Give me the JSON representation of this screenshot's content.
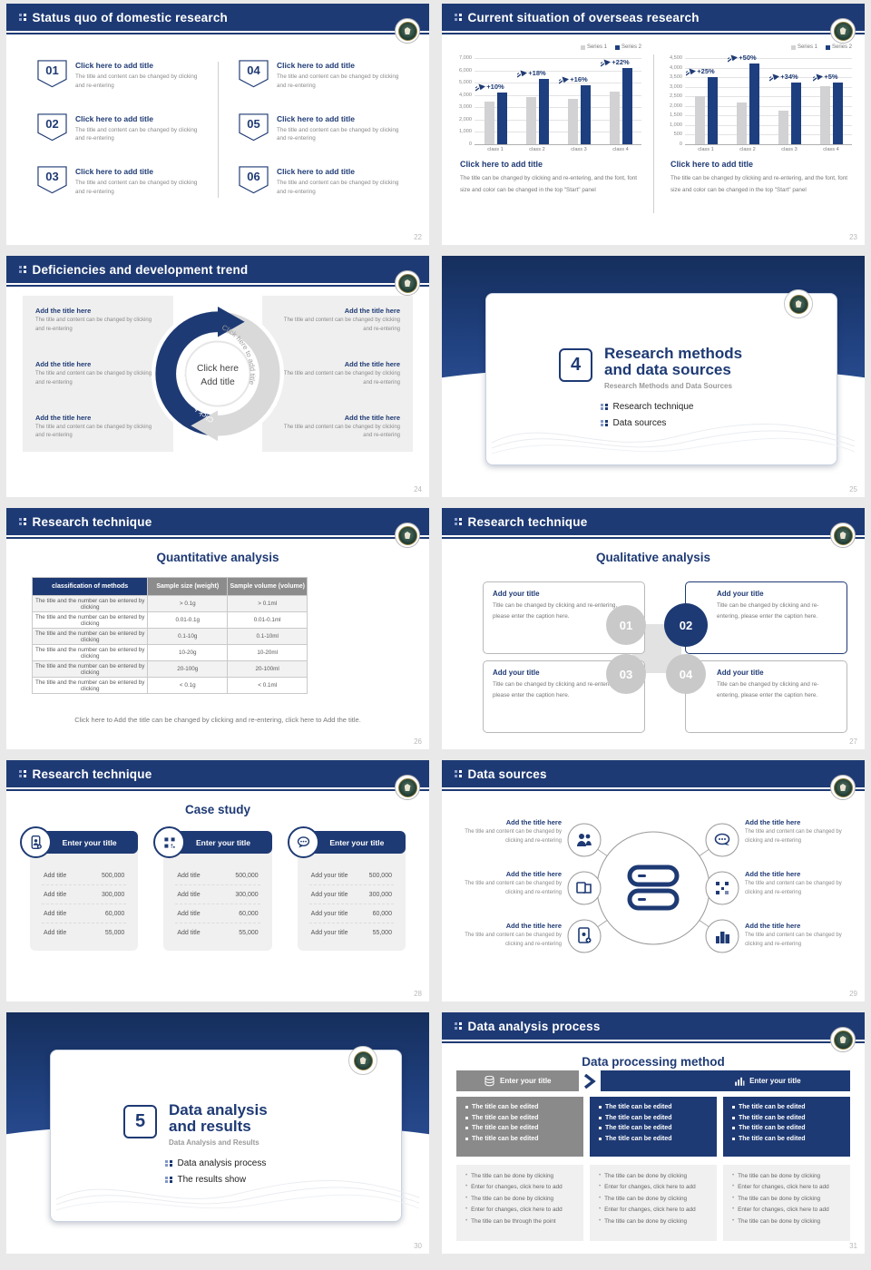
{
  "colors": {
    "navy": "#1e3a74",
    "bar_blue": "#1e3f7f",
    "bar_gray": "#d2d2d4",
    "gray_bar": "#8a8a8a",
    "light_panel": "#f0f0f0"
  },
  "chart_data": [
    {
      "type": "bar",
      "title": "",
      "xlabel": "",
      "ylabel": "",
      "categories": [
        "class 1",
        "class 2",
        "class 3",
        "class 4"
      ],
      "series": [
        {
          "name": "Series 1",
          "color": "#d2d2d4",
          "values": [
            3500,
            3800,
            3700,
            4300
          ]
        },
        {
          "name": "Series 2",
          "color": "#1e3f7f",
          "values": [
            4200,
            5300,
            4800,
            6200
          ]
        }
      ],
      "annotations": [
        "+10%",
        "+18%",
        "+16%",
        "+22%"
      ],
      "ylim": [
        0,
        7000
      ],
      "ytick_step": 1000,
      "grid": true,
      "legend_position": "top-right"
    },
    {
      "type": "bar",
      "title": "",
      "xlabel": "",
      "ylabel": "",
      "categories": [
        "class 1",
        "class 2",
        "class 3",
        "class 4"
      ],
      "series": [
        {
          "name": "Series 1",
          "color": "#d2d2d4",
          "values": [
            2500,
            2200,
            1750,
            3050
          ]
        },
        {
          "name": "Series 2",
          "color": "#1e3f7f",
          "values": [
            3500,
            4200,
            3200,
            3200
          ]
        }
      ],
      "annotations": [
        "+25%",
        "+50%",
        "+34%",
        "+5%"
      ],
      "ylim": [
        0,
        4500
      ],
      "ytick_step": 500,
      "grid": true,
      "legend_position": "top-right"
    }
  ],
  "slides": {
    "s1": {
      "header": "Status quo of domestic research",
      "page": "22",
      "items": [
        {
          "num": "01",
          "title": "Click here to add title",
          "body": "The title and content can be changed by clicking and re-entering"
        },
        {
          "num": "02",
          "title": "Click here to add title",
          "body": "The title and content can be changed by clicking and re-entering"
        },
        {
          "num": "03",
          "title": "Click here to add title",
          "body": "The title and content can be changed by clicking and re-entering"
        },
        {
          "num": "04",
          "title": "Click here to add title",
          "body": "The title and content can be changed by clicking and re-entering"
        },
        {
          "num": "05",
          "title": "Click here to add title",
          "body": "The title and content can be changed by clicking and re-entering"
        },
        {
          "num": "06",
          "title": "Click here to add title",
          "body": "The title and content can be changed by clicking and re-entering"
        }
      ]
    },
    "s2": {
      "header": "Current situation of overseas research",
      "page": "23",
      "captions": [
        {
          "title": "Click here to add title",
          "body": "The title can be changed by clicking and re-entering, and the font, font size and color can be changed in the top \"Start\" panel"
        },
        {
          "title": "Click here to add title",
          "body": "The title can be changed by clicking and re-entering, and the font, font size and color can be changed in the top \"Start\" panel"
        }
      ]
    },
    "s3": {
      "header": "Deficiencies and development trend",
      "page": "24",
      "center_line1": "Click here",
      "center_line2": "Add title",
      "arc_label_left": "Click here to add title",
      "arc_label_right": "Click here to add title",
      "left": [
        {
          "title": "Add the title here",
          "body": "The title and content can be changed by clicking and re-entering"
        },
        {
          "title": "Add the title here",
          "body": "The title and content can be changed by clicking and re-entering"
        },
        {
          "title": "Add the title here",
          "body": "The title and content can be changed by clicking and re-entering"
        }
      ],
      "right": [
        {
          "title": "Add the title here",
          "body": "The title and content can be changed by clicking and re-entering"
        },
        {
          "title": "Add the title here",
          "body": "The title and content can be changed by clicking and re-entering"
        },
        {
          "title": "Add the title here",
          "body": "The title and content can be changed by clicking and re-entering"
        }
      ]
    },
    "s4": {
      "page": "25",
      "number": "4",
      "title_line1": "Research methods",
      "title_line2": "and data sources",
      "subtitle": "Research Methods and Data Sources",
      "bullets": [
        "Research technique",
        "Data sources"
      ]
    },
    "s5": {
      "header": "Research technique",
      "page": "26",
      "title": "Quantitative analysis",
      "table": {
        "headers": [
          "classification of methods",
          "Sample size (weight)",
          "Sample volume (volume)"
        ],
        "rows": [
          [
            "The title and the number can be entered by clicking",
            "> 0.1g",
            "> 0.1ml"
          ],
          [
            "The title and the number can be entered by clicking",
            "0.01-0.1g",
            "0.01-0.1ml"
          ],
          [
            "The title and the number can be entered by clicking",
            "0.1-10g",
            "0.1-10ml"
          ],
          [
            "The title and the number can be entered by clicking",
            "10-20g",
            "10-20ml"
          ],
          [
            "The title and the number can be entered by clicking",
            "20-100g",
            "20-100ml"
          ],
          [
            "The title and the number can be entered by clicking",
            "< 0.1g",
            "< 0.1ml"
          ]
        ]
      },
      "footnote": "Click here to Add the title can be changed by clicking and re-entering, click here to Add the title."
    },
    "s6": {
      "header": "Research technique",
      "page": "27",
      "title": "Qualitative analysis",
      "cards": [
        {
          "num": "01",
          "title": "Add your title",
          "body": "Title can be changed by clicking and re-entering, please enter the caption here."
        },
        {
          "num": "02",
          "title": "Add your title",
          "body": "Title can be changed by clicking and re-entering, please enter the caption here."
        },
        {
          "num": "03",
          "title": "Add your title",
          "body": "Title can be changed by clicking and re-entering, please enter the caption here."
        },
        {
          "num": "04",
          "title": "Add your title",
          "body": "Title can be changed by clicking and re-entering, please enter the caption here."
        }
      ]
    },
    "s7": {
      "header": "Research technique",
      "page": "28",
      "title": "Case study",
      "cards": [
        {
          "icon": "mobile-user-icon",
          "header": "Enter your title",
          "rows": [
            {
              "label": "Add title",
              "value": "500,000"
            },
            {
              "label": "Add title",
              "value": "300,000"
            },
            {
              "label": "Add title",
              "value": "60,000"
            },
            {
              "label": "Add title",
              "value": "55,000"
            }
          ]
        },
        {
          "icon": "qr-code-icon",
          "header": "Enter your title",
          "rows": [
            {
              "label": "Add title",
              "value": "500,000"
            },
            {
              "label": "Add title",
              "value": "300,000"
            },
            {
              "label": "Add title",
              "value": "60,000"
            },
            {
              "label": "Add title",
              "value": "55,000"
            }
          ]
        },
        {
          "icon": "chat-bubble-icon",
          "header": "Enter your title",
          "rows": [
            {
              "label": "Add your title",
              "value": "500,000"
            },
            {
              "label": "Add your title",
              "value": "300,000"
            },
            {
              "label": "Add your title",
              "value": "60,000"
            },
            {
              "label": "Add your title",
              "value": "55,000"
            }
          ]
        }
      ]
    },
    "s8": {
      "header": "Data sources",
      "page": "29",
      "center_icon": "database-icon",
      "satellite_icons": [
        "people-icon",
        "documents-icon",
        "tablet-add-icon",
        "chat-bubble-icon",
        "qr-scan-icon",
        "building-icon"
      ],
      "left": [
        {
          "title": "Add the title here",
          "body": "The title and content can be changed by clicking and re-entering"
        },
        {
          "title": "Add the title here",
          "body": "The title and content can be changed by clicking and re-entering"
        },
        {
          "title": "Add the title here",
          "body": "The title and content can be changed by clicking and re-entering"
        }
      ],
      "right": [
        {
          "title": "Add the title here",
          "body": "The title and content can be changed by clicking and re-entering"
        },
        {
          "title": "Add the title here",
          "body": "The title and content can be changed by clicking and re-entering"
        },
        {
          "title": "Add the title here",
          "body": "The title and content can be changed by clicking and re-entering"
        }
      ]
    },
    "s9": {
      "page": "30",
      "number": "5",
      "title_line1": "Data analysis",
      "title_line2": "and results",
      "subtitle": "Data Analysis and Results",
      "bullets": [
        "Data analysis process",
        "The results show"
      ]
    },
    "s10": {
      "header": "Data analysis process",
      "page": "31",
      "title": "Data processing method",
      "col_headers": [
        {
          "icon": "database-icon",
          "label": "Enter your title"
        },
        {
          "icon": "bar-chart-icon",
          "label": "Enter your title"
        }
      ],
      "edit_lines": [
        "The title can be edited",
        "The title can be edited",
        "The title can be edited",
        "The title can be edited"
      ],
      "detail_boxes": [
        [
          "The title can be done by clicking",
          "Enter for changes, click here to add",
          "The title can be done by clicking",
          "Enter for changes, click here to add",
          "The title can be through the point"
        ],
        [
          "The title can be done by clicking",
          "Enter for changes, click here to add",
          "The title can be done by clicking",
          "Enter for changes, click here to add",
          "The title can be done by clicking"
        ],
        [
          "The title can be done by clicking",
          "Enter for changes, click here to add",
          "The title can be done by clicking",
          "Enter for changes, click here to add",
          "The title can be done by clicking"
        ]
      ]
    }
  }
}
